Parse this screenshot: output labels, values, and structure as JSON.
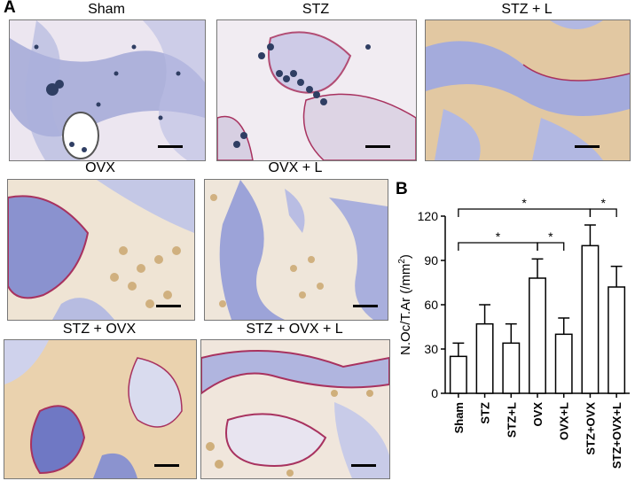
{
  "panel_labels": {
    "a": "A",
    "b": "B"
  },
  "micrographs": [
    {
      "title": "Sham"
    },
    {
      "title": "STZ"
    },
    {
      "title": "STZ + L"
    },
    {
      "title": "OVX"
    },
    {
      "title": "OVX + L"
    },
    {
      "title": "STZ + OVX"
    },
    {
      "title": "STZ + OVX + L"
    }
  ],
  "colors": {
    "background": "#ffffff",
    "tissue": "#e8e2ee",
    "bone_stain": "#7f86c8",
    "marrow": "#c9a46a",
    "osteoclast_stain": "#a8325f",
    "nuclei": "#2f3e63"
  },
  "chart_data": {
    "type": "bar",
    "categories": [
      "Sham",
      "STZ",
      "STZ+L",
      "OVX",
      "OVX+L",
      "STZ+OVX",
      "STZ+OVX+L"
    ],
    "values": [
      25,
      47,
      34,
      78,
      40,
      100,
      72
    ],
    "errors": [
      9,
      13,
      13,
      13,
      11,
      14,
      14
    ],
    "ylabel_prefix": "N.Oc/T.Ar (/mm",
    "ylabel_sup": "2",
    "ylabel_suffix": ")",
    "ylim": [
      0,
      120
    ],
    "yticks": [
      0,
      30,
      60,
      90,
      120
    ],
    "bar_fill": "#ffffff",
    "bar_stroke": "#000000",
    "grid": false,
    "significance": [
      {
        "from": 0,
        "to": 5,
        "label": "*"
      },
      {
        "from": 0,
        "to": 3,
        "label": "*"
      },
      {
        "from": 3,
        "to": 4,
        "label": "*"
      },
      {
        "from": 5,
        "to": 6,
        "label": "*"
      }
    ]
  }
}
